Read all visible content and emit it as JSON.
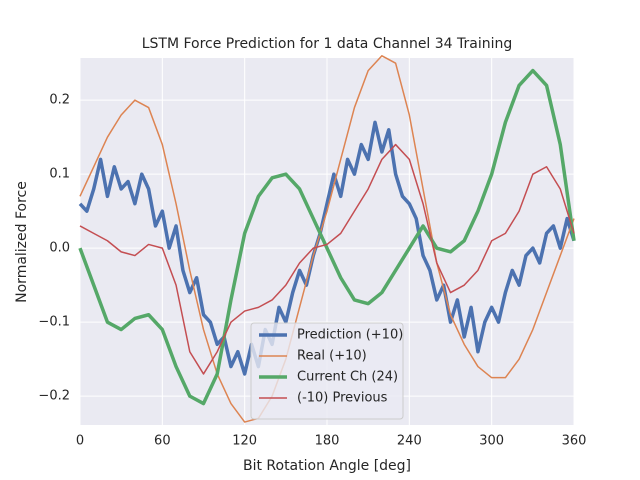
{
  "chart_data": {
    "type": "line",
    "title": "LSTM Force Prediction for 1 data Channel 34 Training",
    "x_label": "Bit Rotation Angle [deg]",
    "y_label": "Normalized Force",
    "xlim": [
      0,
      360
    ],
    "xticks": [
      0,
      60,
      120,
      180,
      240,
      300,
      360
    ],
    "ylim": [
      -0.239,
      0.257
    ],
    "yticks": [
      {
        "value": -0.2,
        "label": "−0.2"
      },
      {
        "value": -0.1,
        "label": "−0.1"
      },
      {
        "value": 0,
        "label": "0.0"
      },
      0.1,
      0.2
    ],
    "grid": true,
    "legend": "lower center",
    "series": [
      {
        "name": "Prediction (+10)",
        "color": "#4c72b0",
        "x": [
          0,
          5,
          10,
          15,
          20,
          25,
          30,
          35,
          40,
          45,
          50,
          55,
          60,
          65,
          70,
          75,
          80,
          85,
          90,
          95,
          100,
          105,
          110,
          115,
          120,
          125,
          130,
          135,
          140,
          145,
          150,
          155,
          160,
          165,
          170,
          175,
          180,
          185,
          190,
          195,
          200,
          205,
          210,
          215,
          220,
          225,
          230,
          235,
          240,
          245,
          250,
          255,
          260,
          265,
          270,
          275,
          280,
          285,
          290,
          295,
          300,
          305,
          310,
          315,
          320,
          325,
          330,
          335,
          340,
          345,
          350,
          355,
          360
        ],
        "values": [
          0.06,
          0.05,
          0.08,
          0.12,
          0.07,
          0.11,
          0.08,
          0.09,
          0.06,
          0.1,
          0.08,
          0.03,
          0.05,
          0.0,
          0.03,
          -0.03,
          -0.06,
          -0.04,
          -0.09,
          -0.1,
          -0.13,
          -0.12,
          -0.16,
          -0.14,
          -0.17,
          -0.13,
          -0.16,
          -0.11,
          -0.13,
          -0.08,
          -0.1,
          -0.06,
          -0.03,
          -0.05,
          -0.01,
          0.02,
          0.06,
          0.1,
          0.07,
          0.12,
          0.1,
          0.14,
          0.12,
          0.17,
          0.13,
          0.16,
          0.1,
          0.07,
          0.06,
          0.04,
          -0.01,
          -0.03,
          -0.07,
          -0.05,
          -0.1,
          -0.07,
          -0.12,
          -0.08,
          -0.14,
          -0.1,
          -0.08,
          -0.1,
          -0.06,
          -0.03,
          -0.05,
          -0.01,
          0.0,
          -0.02,
          0.02,
          0.03,
          0.0,
          0.04,
          0.01
        ]
      },
      {
        "name": "Real (+10)",
        "color": "#dd8452",
        "x": [
          0,
          10,
          20,
          30,
          40,
          50,
          60,
          70,
          80,
          90,
          100,
          110,
          120,
          130,
          140,
          150,
          160,
          170,
          180,
          190,
          200,
          210,
          220,
          230,
          240,
          250,
          260,
          270,
          280,
          290,
          300,
          310,
          320,
          330,
          340,
          350,
          360
        ],
        "values": [
          0.07,
          0.11,
          0.15,
          0.18,
          0.2,
          0.19,
          0.14,
          0.06,
          -0.03,
          -0.11,
          -0.17,
          -0.21,
          -0.235,
          -0.23,
          -0.2,
          -0.15,
          -0.08,
          -0.01,
          0.05,
          0.12,
          0.19,
          0.24,
          0.26,
          0.25,
          0.18,
          0.08,
          -0.02,
          -0.09,
          -0.13,
          -0.16,
          -0.175,
          -0.175,
          -0.15,
          -0.11,
          -0.06,
          -0.01,
          0.04
        ]
      },
      {
        "name": "Current Ch (24)",
        "color": "#55a868",
        "x": [
          0,
          10,
          20,
          30,
          40,
          50,
          60,
          70,
          80,
          90,
          100,
          110,
          120,
          130,
          140,
          150,
          160,
          170,
          180,
          190,
          200,
          210,
          220,
          230,
          240,
          250,
          260,
          270,
          280,
          290,
          300,
          310,
          320,
          330,
          340,
          350,
          360
        ],
        "values": [
          0.0,
          -0.05,
          -0.1,
          -0.11,
          -0.095,
          -0.09,
          -0.11,
          -0.16,
          -0.2,
          -0.21,
          -0.17,
          -0.07,
          0.02,
          0.07,
          0.095,
          0.1,
          0.08,
          0.04,
          0.0,
          -0.04,
          -0.07,
          -0.075,
          -0.06,
          -0.03,
          0.0,
          0.03,
          0.0,
          -0.005,
          0.01,
          0.05,
          0.1,
          0.17,
          0.22,
          0.24,
          0.22,
          0.14,
          0.01
        ]
      },
      {
        "name": "(-10) Previous",
        "color": "#c44e52",
        "x": [
          0,
          10,
          20,
          30,
          40,
          50,
          60,
          70,
          80,
          90,
          100,
          110,
          120,
          130,
          140,
          150,
          160,
          170,
          180,
          190,
          200,
          210,
          220,
          230,
          240,
          250,
          260,
          270,
          280,
          290,
          300,
          310,
          320,
          330,
          340,
          350,
          360
        ],
        "values": [
          0.03,
          0.02,
          0.01,
          -0.005,
          -0.01,
          0.005,
          0.0,
          -0.05,
          -0.14,
          -0.17,
          -0.14,
          -0.1,
          -0.085,
          -0.08,
          -0.07,
          -0.05,
          -0.02,
          0.0,
          0.005,
          0.02,
          0.05,
          0.08,
          0.12,
          0.14,
          0.12,
          0.06,
          -0.02,
          -0.06,
          -0.05,
          -0.03,
          0.01,
          0.02,
          0.05,
          0.1,
          0.11,
          0.08,
          0.02
        ]
      }
    ]
  }
}
